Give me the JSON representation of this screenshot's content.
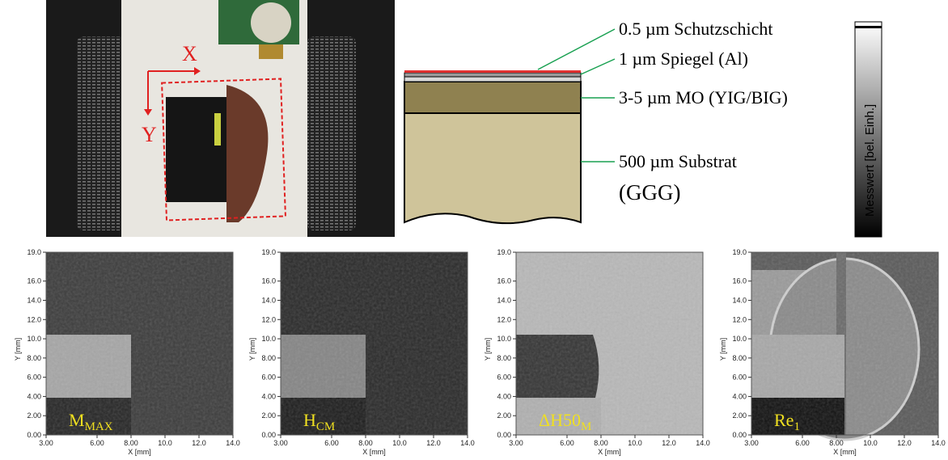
{
  "photo": {
    "x_label": "X",
    "y_label": "Y"
  },
  "layer_diagram": {
    "layers": [
      "0.5 µm Schutzschicht",
      "1 µm Spiegel (Al)",
      "3-5 µm MO (YIG/BIG)",
      "500 µm Substrat"
    ],
    "substrate_note": "(GGG)"
  },
  "colorbar": {
    "label": "Messwert [bel. Einh.]"
  },
  "panels": [
    {
      "label": "M",
      "label_sub": "MAX"
    },
    {
      "label": "H",
      "label_sub": "CM"
    },
    {
      "label": "ΔH50",
      "label_sub": "M"
    },
    {
      "label": "Re",
      "label_sub": "1"
    }
  ],
  "axes": {
    "x_label": "X [mm]",
    "y_label": "Y [mm]",
    "xlim": [
      3,
      14
    ],
    "ylim": [
      0,
      19
    ],
    "xticks": [
      {
        "value": 3,
        "label": "3.00"
      },
      {
        "value": 6,
        "label": "6.00"
      },
      {
        "value": 8,
        "label": "8.00"
      },
      {
        "value": 10,
        "label": "10.0"
      },
      {
        "value": 12,
        "label": "12.0"
      },
      {
        "value": 14,
        "label": "14.0"
      }
    ],
    "yticks": [
      {
        "value": 0,
        "label": "0.00"
      },
      {
        "value": 2,
        "label": "2.00"
      },
      {
        "value": 4,
        "label": "4.00"
      },
      {
        "value": 6,
        "label": "6.00"
      },
      {
        "value": 8,
        "label": "8.00"
      },
      {
        "value": 10,
        "label": "10.0"
      },
      {
        "value": 12,
        "label": "12.0"
      },
      {
        "value": 14,
        "label": "14.0"
      },
      {
        "value": 16,
        "label": "16.0"
      },
      {
        "value": 19,
        "label": "19.0"
      }
    ]
  }
}
